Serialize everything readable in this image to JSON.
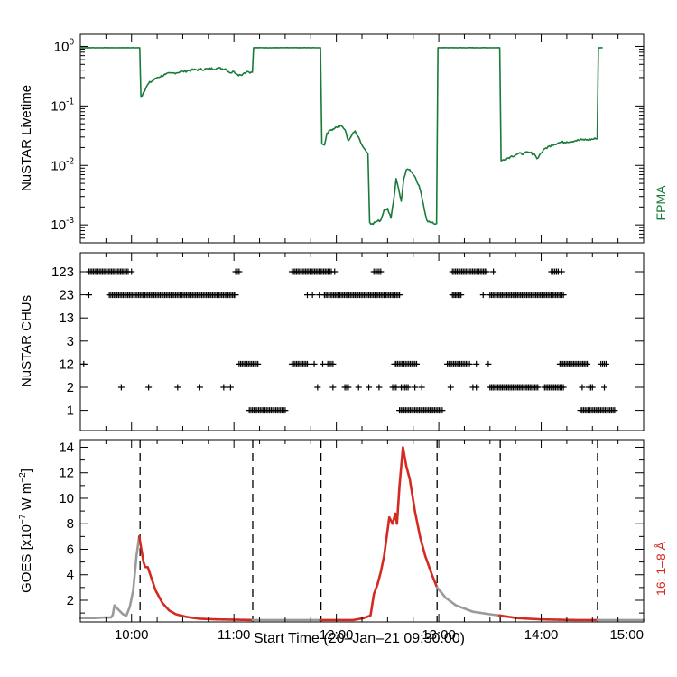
{
  "chart_data": {
    "type": "line",
    "x_axis": {
      "label": "Start Time (20–Jan–21 09:30:00)",
      "range_minutes": [
        0,
        330
      ],
      "tick_labels": [
        "10:00",
        "11:00",
        "12:00",
        "13:00",
        "14:00",
        "15:00"
      ],
      "tick_minutes": [
        30,
        90,
        150,
        210,
        270,
        330
      ]
    },
    "panels": [
      {
        "id": "livetime",
        "ylabel": "NuSTAR Livetime",
        "yscale": "log",
        "ylim": [
          0.0005,
          1.6
        ],
        "ytick_labels": [
          {
            "base": "10",
            "exp": "0",
            "value": 1
          },
          {
            "base": "10",
            "exp": "-1",
            "value": 0.1
          },
          {
            "base": "10",
            "exp": "-2",
            "value": 0.01
          },
          {
            "base": "10",
            "exp": "-3",
            "value": 0.001
          }
        ],
        "series": [
          {
            "name": "FPMA",
            "color": "#1a7a3a",
            "points": [
              [
                0,
                0.95
              ],
              [
                34,
                0.95
              ],
              [
                34.8,
                0.95
              ],
              [
                35.5,
                0.14
              ],
              [
                37,
                0.17
              ],
              [
                40,
                0.24
              ],
              [
                45,
                0.3
              ],
              [
                50,
                0.34
              ],
              [
                55,
                0.36
              ],
              [
                60,
                0.38
              ],
              [
                65,
                0.4
              ],
              [
                70,
                0.41
              ],
              [
                75,
                0.42
              ],
              [
                80,
                0.43
              ],
              [
                85,
                0.42
              ],
              [
                88,
                0.36
              ],
              [
                90,
                0.38
              ],
              [
                92,
                0.34
              ],
              [
                94,
                0.33
              ],
              [
                96,
                0.36
              ],
              [
                98,
                0.38
              ],
              [
                100,
                0.37
              ],
              [
                100.8,
                0.37
              ],
              [
                101.5,
                0.95
              ],
              [
                104,
                0.95
              ],
              [
                140,
                0.95
              ],
              [
                140.7,
                0.95
              ],
              [
                141.5,
                0.023
              ],
              [
                143,
                0.022
              ],
              [
                144.5,
                0.035
              ],
              [
                147,
                0.04
              ],
              [
                150,
                0.044
              ],
              [
                153,
                0.046
              ],
              [
                155,
                0.04
              ],
              [
                157,
                0.026
              ],
              [
                159,
                0.032
              ],
              [
                161,
                0.038
              ],
              [
                163,
                0.03
              ],
              [
                165,
                0.022
              ],
              [
                167,
                0.018
              ],
              [
                168.5,
                0.016
              ],
              [
                169.5,
                0.0011
              ],
              [
                171,
                0.00105
              ],
              [
                174,
                0.00115
              ],
              [
                176,
                0.0012
              ],
              [
                178,
                0.0018
              ],
              [
                180,
                0.0019
              ],
              [
                182,
                0.0013
              ],
              [
                183.5,
                0.0025
              ],
              [
                185,
                0.006
              ],
              [
                186.5,
                0.004
              ],
              [
                188,
                0.0025
              ],
              [
                189.5,
                0.006
              ],
              [
                191,
                0.0085
              ],
              [
                193,
                0.0085
              ],
              [
                195,
                0.007
              ],
              [
                197,
                0.0055
              ],
              [
                199,
                0.004
              ],
              [
                201,
                0.0022
              ],
              [
                203,
                0.0012
              ],
              [
                205,
                0.0011
              ],
              [
                207,
                0.00105
              ],
              [
                208.7,
                0.00105
              ],
              [
                209.5,
                0.95
              ],
              [
                212,
                0.95
              ],
              [
                245,
                0.95
              ],
              [
                245.7,
                0.95
              ],
              [
                246.5,
                0.012
              ],
              [
                248,
                0.0125
              ],
              [
                252,
                0.014
              ],
              [
                256,
                0.0155
              ],
              [
                260,
                0.016
              ],
              [
                263,
                0.0165
              ],
              [
                266,
                0.0155
              ],
              [
                267.5,
                0.013
              ],
              [
                269,
                0.015
              ],
              [
                272,
                0.019
              ],
              [
                276,
                0.022
              ],
              [
                280,
                0.024
              ],
              [
                285,
                0.025
              ],
              [
                290,
                0.026
              ],
              [
                294,
                0.027
              ],
              [
                297,
                0.027
              ],
              [
                302,
                0.028
              ],
              [
                302.8,
                0.028
              ],
              [
                303.5,
                0.95
              ],
              [
                306,
                0.95
              ]
            ]
          }
        ],
        "series_label": "FPMA"
      },
      {
        "id": "chus",
        "ylabel": "NuSTAR CHUs",
        "type": "scatter",
        "marker": "+",
        "categories": [
          "123",
          "23",
          "13",
          "3",
          "12",
          "2",
          "1"
        ],
        "segments_minutes": {
          "123": [
            [
              5,
              28
            ],
            [
              30,
              30
            ],
            [
              91,
              93
            ],
            [
              124,
              147
            ],
            [
              149,
              149
            ],
            [
              172,
              176
            ],
            [
              218,
              238
            ],
            [
              242,
              242
            ],
            [
              276,
              280
            ],
            [
              282,
              282
            ]
          ],
          "23": [
            [
              5,
              5
            ],
            [
              17,
              91
            ],
            [
              133,
              133
            ],
            [
              136,
              136
            ],
            [
              140,
              140
            ],
            [
              143,
              187
            ],
            [
              218,
              223
            ],
            [
              236,
              236
            ],
            [
              240,
              283
            ]
          ],
          "13": [],
          "3": [],
          "12": [
            [
              2,
              2
            ],
            [
              93,
              104
            ],
            [
              124,
              133
            ],
            [
              137,
              137
            ],
            [
              142,
              142
            ],
            [
              145,
              148
            ],
            [
              184,
              197
            ],
            [
              215,
              228
            ],
            [
              232,
              232
            ],
            [
              239,
              239
            ],
            [
              281,
              297
            ],
            [
              305,
              308
            ]
          ],
          "2": [
            [
              24,
              24
            ],
            [
              40,
              40
            ],
            [
              57,
              57
            ],
            [
              70,
              70
            ],
            [
              84,
              84
            ],
            [
              88,
              88
            ],
            [
              139,
              139
            ],
            [
              148,
              148
            ],
            [
              155,
              157
            ],
            [
              163,
              163
            ],
            [
              169,
              169
            ],
            [
              175,
              175
            ],
            [
              183,
              185
            ],
            [
              188,
              192
            ],
            [
              196,
              196
            ],
            [
              200,
              200
            ],
            [
              217,
              217
            ],
            [
              230,
              230
            ],
            [
              232,
              232
            ],
            [
              240,
              268
            ],
            [
              272,
              283
            ],
            [
              294,
              294
            ],
            [
              298,
              300
            ],
            [
              307,
              307
            ]
          ],
          "1": [
            [
              99,
              120
            ],
            [
              187,
              212
            ],
            [
              293,
              313
            ]
          ]
        },
        "dense_step_minutes": 0.9
      },
      {
        "id": "goes",
        "ylabel_text": "GOES [x10",
        "ylabel_exp": "−7",
        "ylabel_mid": " W m",
        "ylabel_exp2": "−2",
        "ylabel_end": "]",
        "ylim": [
          0.3,
          14.6
        ],
        "yticks": [
          "2",
          "4",
          "6",
          "8",
          "10",
          "12",
          "14"
        ],
        "ytick_values": [
          2,
          4,
          6,
          8,
          10,
          12,
          14
        ],
        "series_label": "16: 1–8 Å",
        "series": [
          {
            "name": "GOES 16: 1–8 Å",
            "color_default": "#9a9a9a",
            "color_highlight": "#d42a21",
            "highlight_intervals_minutes": [
              [
                35,
                101
              ],
              [
                141,
                209
              ],
              [
                246,
                303
              ]
            ],
            "points": [
              [
                0,
                0.6
              ],
              [
                8,
                0.6
              ],
              [
                14,
                0.65
              ],
              [
                18,
                0.65
              ],
              [
                19,
                0.85
              ],
              [
                20,
                1.6
              ],
              [
                22,
                1.3
              ],
              [
                25,
                0.9
              ],
              [
                27,
                0.8
              ],
              [
                29,
                1.5
              ],
              [
                31,
                2.8
              ],
              [
                33,
                5.6
              ],
              [
                34.5,
                7.0
              ],
              [
                35.5,
                6.2
              ],
              [
                37,
                5.0
              ],
              [
                38,
                4.6
              ],
              [
                39.5,
                4.6
              ],
              [
                41,
                4.0
              ],
              [
                44,
                2.8
              ],
              [
                48,
                1.8
              ],
              [
                52,
                1.2
              ],
              [
                56,
                0.9
              ],
              [
                62,
                0.7
              ],
              [
                70,
                0.55
              ],
              [
                80,
                0.5
              ],
              [
                101,
                0.45
              ],
              [
                110,
                0.45
              ],
              [
                130,
                0.45
              ],
              [
                150,
                0.45
              ],
              [
                160,
                0.45
              ],
              [
                166,
                0.6
              ],
              [
                170,
                0.8
              ],
              [
                172,
                2.5
              ],
              [
                174,
                3.2
              ],
              [
                176,
                4.2
              ],
              [
                178,
                5.5
              ],
              [
                181,
                8.5
              ],
              [
                183,
                8.0
              ],
              [
                184.5,
                8.8
              ],
              [
                185.5,
                8.0
              ],
              [
                187,
                11.0
              ],
              [
                189,
                14.0
              ],
              [
                191,
                12.5
              ],
              [
                193,
                11.5
              ],
              [
                196,
                9.0
              ],
              [
                199,
                7.0
              ],
              [
                202,
                5.5
              ],
              [
                206,
                4.0
              ],
              [
                209,
                3.0
              ],
              [
                214,
                2.2
              ],
              [
                220,
                1.6
              ],
              [
                230,
                1.1
              ],
              [
                240,
                0.9
              ],
              [
                246,
                0.8
              ],
              [
                256,
                0.6
              ],
              [
                270,
                0.5
              ],
              [
                290,
                0.45
              ],
              [
                303,
                0.45
              ],
              [
                330,
                0.45
              ]
            ]
          }
        ],
        "dashed_lines_minutes": [
          35,
          101,
          141,
          209,
          246,
          303
        ]
      }
    ]
  }
}
